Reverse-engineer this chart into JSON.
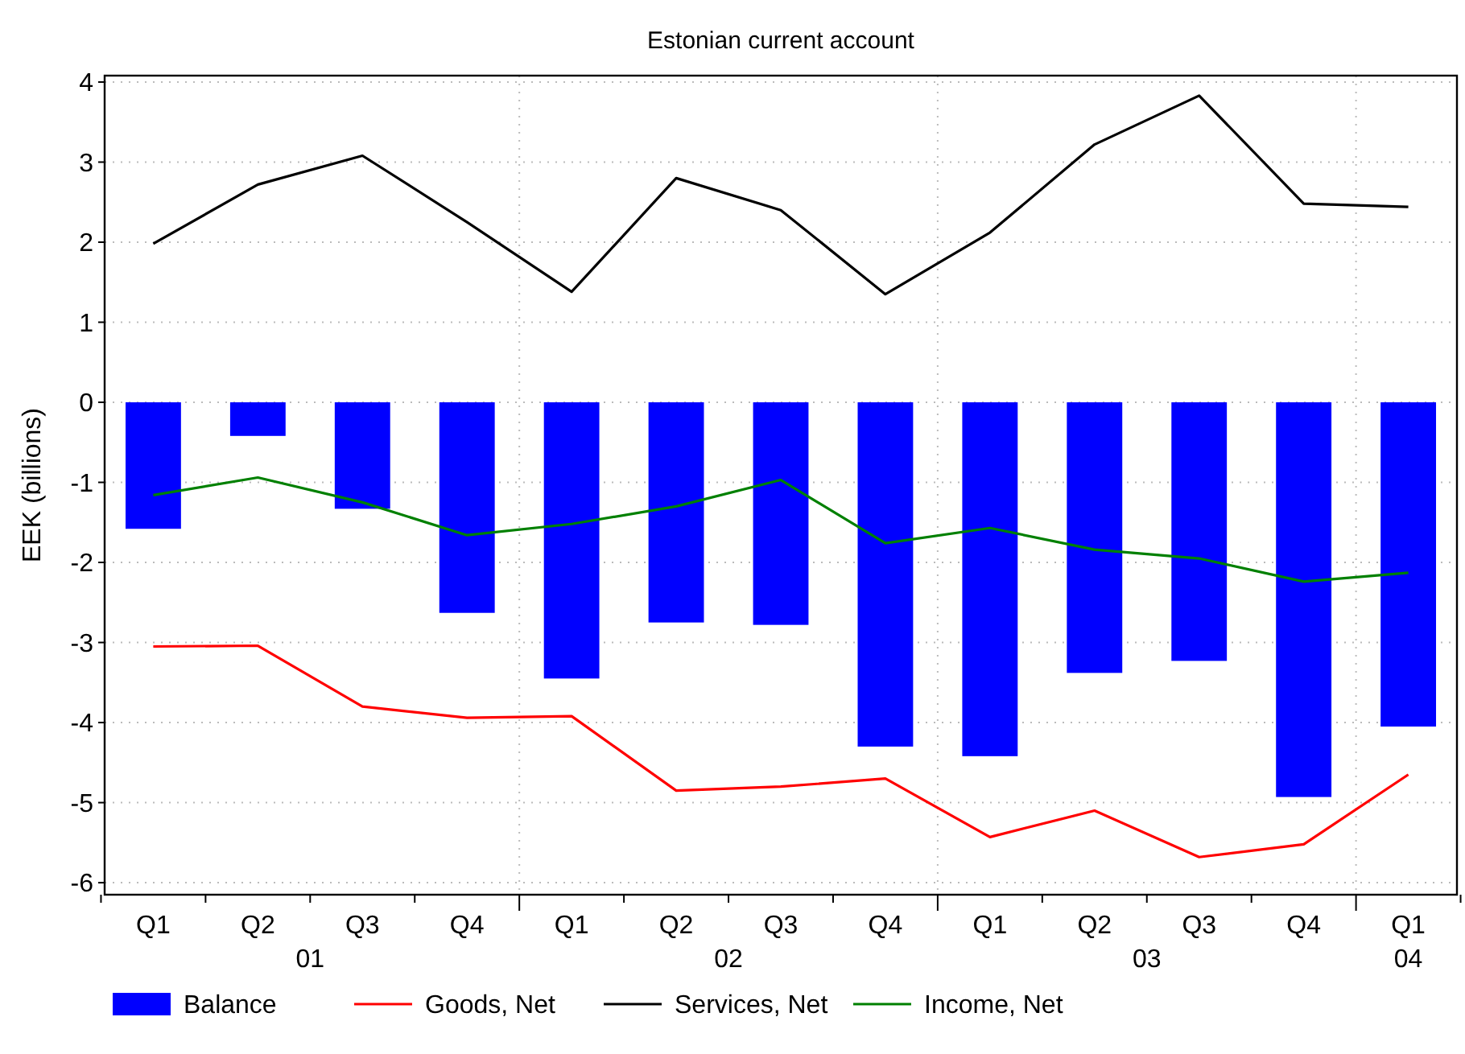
{
  "chart_data": {
    "type": "bar",
    "title": "Estonian current account",
    "ylabel": "EEK (billions)",
    "categories": [
      "Q1",
      "Q2",
      "Q3",
      "Q4",
      "Q1",
      "Q2",
      "Q3",
      "Q4",
      "Q1",
      "Q2",
      "Q3",
      "Q4",
      "Q1"
    ],
    "annotations": [
      "01",
      "02",
      "03",
      "04"
    ],
    "series": [
      {
        "name": "Balance",
        "color": "#0000ff",
        "values": [
          -1.58,
          -0.42,
          -1.33,
          -2.63,
          -3.45,
          -2.75,
          -2.78,
          -4.3,
          -4.42,
          -3.38,
          -3.23,
          -4.93,
          -4.05
        ]
      },
      {
        "name": "Goods, Net",
        "type": "line",
        "color": "#ff0000",
        "values": [
          -3.05,
          -3.04,
          -3.8,
          -3.94,
          -3.92,
          -4.85,
          -4.8,
          -4.7,
          -5.43,
          -5.1,
          -5.68,
          -5.52,
          -4.65
        ]
      },
      {
        "name": "Services, Net",
        "type": "line",
        "color": "#000000",
        "values": [
          1.98,
          2.72,
          3.08,
          2.25,
          1.38,
          2.8,
          2.4,
          1.35,
          2.12,
          3.22,
          3.83,
          2.48,
          2.44
        ]
      },
      {
        "name": "Income, Net",
        "type": "line",
        "color": "#008000",
        "values": [
          -1.16,
          -0.94,
          -1.25,
          -1.66,
          -1.52,
          -1.3,
          -0.97,
          -1.76,
          -1.57,
          -1.84,
          -1.95,
          -2.24,
          -2.13
        ]
      }
    ],
    "ylim": [
      -6.15,
      4.08
    ],
    "yticks": [
      -6,
      -5,
      -4,
      -3,
      -2,
      -1,
      0,
      1,
      2,
      3,
      4
    ],
    "grid": true,
    "legend": "bottom",
    "marker": "none",
    "line_style": "solid"
  }
}
